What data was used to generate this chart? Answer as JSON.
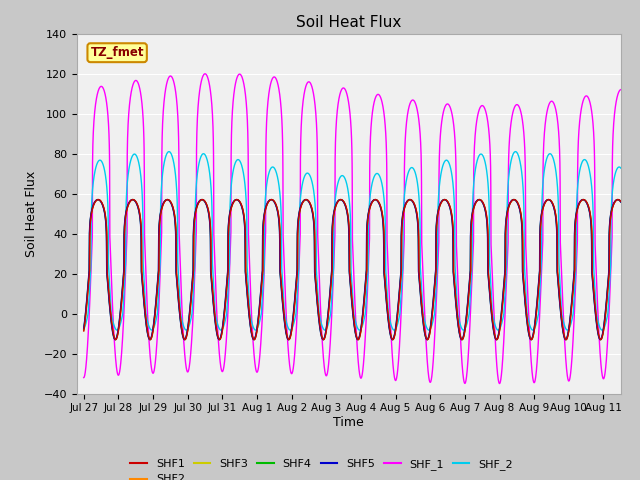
{
  "title": "Soil Heat Flux",
  "ylabel": "Soil Heat Flux",
  "xlabel": "Time",
  "ylim": [
    -40,
    140
  ],
  "yticks": [
    -40,
    -20,
    0,
    20,
    40,
    60,
    80,
    100,
    120,
    140
  ],
  "fig_bg_color": "#c8c8c8",
  "plot_bg_color": "#f0f0f0",
  "series_colors": {
    "SHF1": "#cc0000",
    "SHF2": "#ff8800",
    "SHF3": "#cccc00",
    "SHF4": "#00bb00",
    "SHF5": "#0000cc",
    "SHF_1": "#ff00ff",
    "SHF_2": "#00ccee"
  },
  "tz_label": "TZ_fmet",
  "tz_bg": "#ffff99",
  "tz_border": "#cc8800",
  "tz_text_color": "#880000",
  "xtick_labels": [
    "Jul 27",
    "Jul 28",
    "Jul 29",
    "Jul 30",
    "Jul 31",
    "Aug 1",
    "Aug 2",
    "Aug 3",
    "Aug 4",
    "Aug 5",
    "Aug 6",
    "Aug 7",
    "Aug 8",
    "Aug 9",
    "Aug 10",
    "Aug 11"
  ],
  "xtick_positions": [
    0,
    1,
    2,
    3,
    4,
    5,
    6,
    7,
    8,
    9,
    10,
    11,
    12,
    13,
    14,
    15
  ]
}
